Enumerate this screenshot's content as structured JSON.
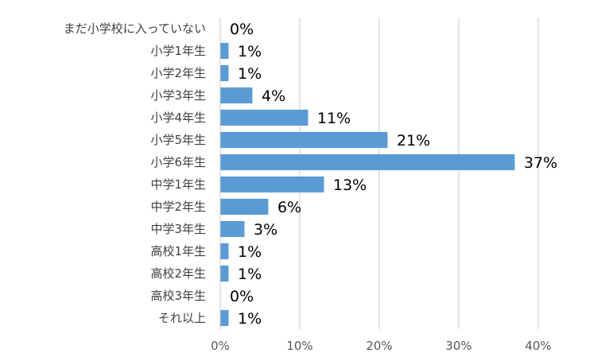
{
  "chart_data": {
    "type": "bar",
    "orientation": "horizontal",
    "categories": [
      "まだ小学校に入っていない",
      "小学1年生",
      "小学2年生",
      "小学3年生",
      "小学4年生",
      "小学5年生",
      "小学6年生",
      "中学1年生",
      "中学2年生",
      "中学3年生",
      "高校1年生",
      "高校2年生",
      "高校3年生",
      "それ以上"
    ],
    "values": [
      0,
      1,
      1,
      4,
      11,
      21,
      37,
      13,
      6,
      3,
      1,
      1,
      0,
      1
    ],
    "data_labels": [
      "0%",
      "1%",
      "1%",
      "4%",
      "11%",
      "21%",
      "37%",
      "13%",
      "6%",
      "3%",
      "1%",
      "1%",
      "0%",
      "1%"
    ],
    "x_ticks": [
      0,
      10,
      20,
      30,
      40
    ],
    "x_tick_labels": [
      "0%",
      "10%",
      "20%",
      "30%",
      "40%"
    ],
    "xlim": [
      0,
      40
    ],
    "grid": true,
    "legend": "none",
    "bar_color": "#5b9bd5"
  }
}
